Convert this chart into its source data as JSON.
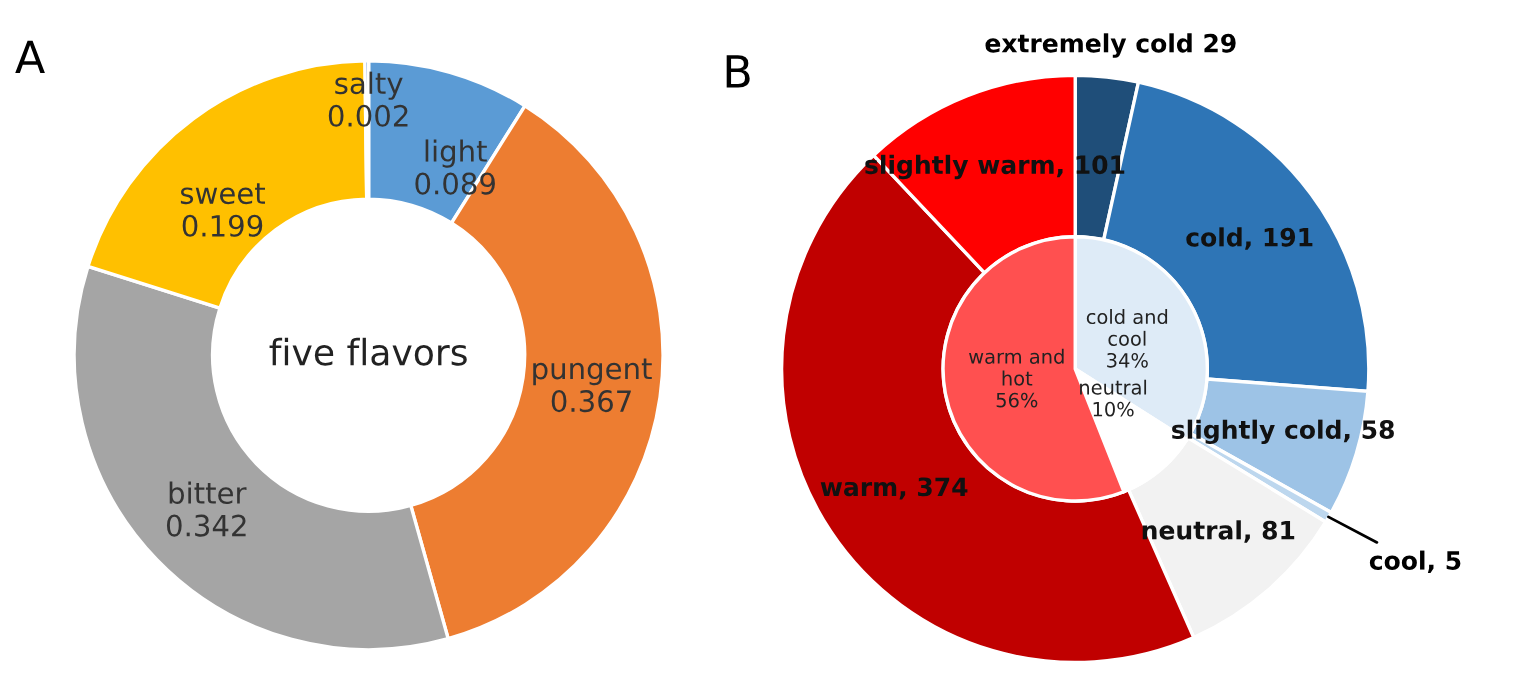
{
  "chart_data": [
    {
      "type": "donut",
      "categories": [
        "light",
        "pungent",
        "bitter",
        "sweet",
        "salty"
      ],
      "values": [
        0.089,
        0.367,
        0.342,
        0.199,
        0.002
      ],
      "colors": [
        "#5b9bd5",
        "#ed7d31",
        "#a5a5a5",
        "#ffc000",
        "#4472c4"
      ],
      "data_labels": true,
      "annotations": [
        "A",
        "five flavors"
      ]
    },
    {
      "type": "donut",
      "categories": [
        null,
        null,
        null,
        null,
        null,
        null,
        null,
        null,
        null,
        null
      ],
      "colors": [
        "#1f4e79",
        "#2e75b6",
        "#9dc3e6",
        "#bdd7ee",
        "#f2f2f2",
        "#c00000",
        "#ff0000",
        "#deebf7",
        "#ffffff",
        "#ff5050"
      ],
      "annotations": [
        "B"
      ],
      "series": [
        {
          "type": "donut",
          "values": [
            29,
            191,
            58,
            5,
            81,
            374,
            101,
            null,
            null,
            null
          ],
          "value_labels": [
            "extremely cold 29",
            "cold, 191",
            "slightly cold, 58",
            "cool, 5",
            "neutral, 81",
            "warm, 374",
            "slightly warm, 101",
            null,
            null,
            null
          ]
        },
        {
          "type": "pie",
          "values": [
            null,
            null,
            null,
            null,
            null,
            null,
            null,
            34,
            10,
            56
          ],
          "value_labels": [
            null,
            null,
            null,
            null,
            null,
            null,
            null,
            "cold and\ncool\n34%",
            "neutral\n10%",
            "warm and\nhot\n56%"
          ]
        }
      ]
    }
  ]
}
